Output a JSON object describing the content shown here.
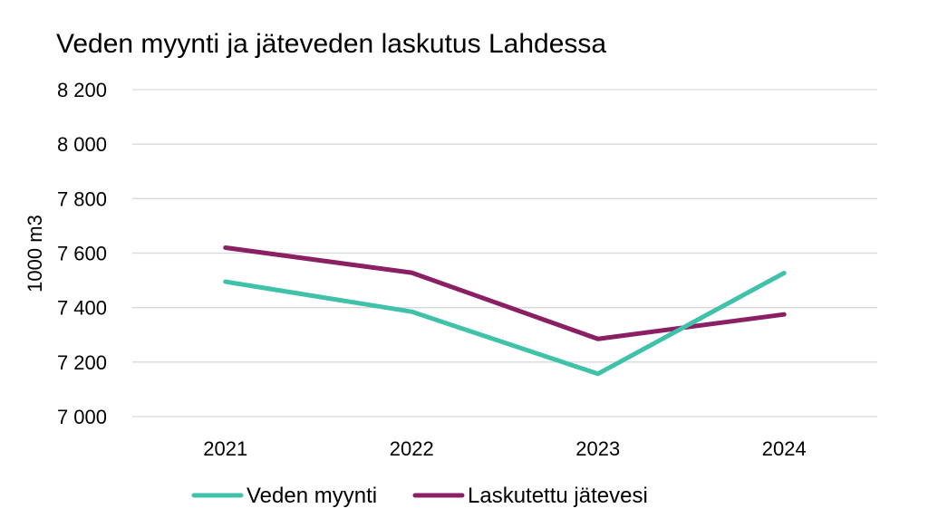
{
  "colors": {
    "veden_myynti": "#3fc1aa",
    "laskutettu_jatevesi": "#8a1f63",
    "grid": "#d9d9d9"
  },
  "chart_data": {
    "type": "line",
    "title": "Veden myynti ja jäteveden laskutus Lahdessa",
    "xlabel": "",
    "ylabel": "1000 m3",
    "categories": [
      "2021",
      "2022",
      "2023",
      "2024"
    ],
    "ylim": [
      7000,
      8200
    ],
    "yticks": [
      7000,
      7200,
      7400,
      7600,
      7800,
      8000,
      8200
    ],
    "ytick_labels": [
      "7 000",
      "7 200",
      "7 400",
      "7 600",
      "7 800",
      "8 000",
      "8 200"
    ],
    "grid": true,
    "legend_position": "bottom",
    "series": [
      {
        "name": "Veden myynti",
        "color": "#3fc1aa",
        "values": [
          7495,
          7385,
          7157,
          7527
        ]
      },
      {
        "name": "Laskutettu jätevesi",
        "color": "#8a1f63",
        "values": [
          7620,
          7528,
          7285,
          7375
        ]
      }
    ]
  }
}
